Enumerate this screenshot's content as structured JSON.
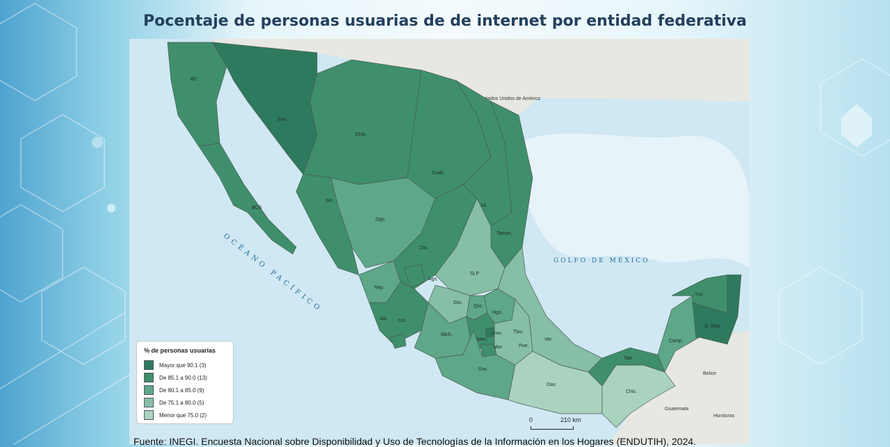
{
  "title": "Pocentaje de personas usuarias de de internet por entidad federativa",
  "colors": {
    "mayor": "#2e7a5e",
    "c85": "#3f8f6c",
    "c80": "#5ea789",
    "c75": "#86bfa6",
    "menor": "#a9d3bf",
    "foreign": "#e8e8e2",
    "sea": "#cfe8f3"
  },
  "map": {
    "usa_label": "Estados Unidos de América",
    "gulf_label": "GOLFO DE MÉXICO",
    "ocean_label": "OCÉANO PACÍFICO",
    "belize_label": "Belice",
    "guatemala_label": "Guatemala",
    "honduras_label": "Honduras",
    "states": {
      "bc": "BC",
      "son": "Son.",
      "chih": "Chih.",
      "coah": "Coah.",
      "nl": "NL",
      "tamps": "Tamps.",
      "sin": "Sin.",
      "bcs": "BCS",
      "dgo": "Dgo.",
      "zac": "Zac.",
      "slp": "SLP",
      "ags": "Ags.",
      "nay": "Nay.",
      "gto": "Gto.",
      "qro": "Qro.",
      "hgo": "Hgo.",
      "jal": "Jal.",
      "col": "Col.",
      "mich": "Mich.",
      "mex": "Mex.",
      "cdmx": "CDMX",
      "tlax": "Tlax.",
      "mor": "Mor.",
      "pue": "Pue.",
      "ver": "Ver.",
      "gro": "Gro.",
      "oax": "Oax.",
      "chis": "Chis.",
      "tab": "Tab.",
      "camp": "Camp.",
      "yuc": "Yuc.",
      "qroo": "Q. Roo"
    }
  },
  "legend": {
    "title": "% de personas usuarias",
    "items": [
      {
        "label": "Mayor que 90.1 (3)",
        "color": "#2e7a5e"
      },
      {
        "label": "De 85.1 a 90.0 (13)",
        "color": "#3f8f6c"
      },
      {
        "label": "De 80.1 a 85.0 (9)",
        "color": "#5ea789"
      },
      {
        "label": "De 75.1 a 80.0 (5)",
        "color": "#86bfa6"
      },
      {
        "label": "Menor que 75.0 (2)",
        "color": "#a9d3bf"
      }
    ]
  },
  "scale": {
    "zero": "0",
    "km": "210 km"
  },
  "source": "Fuente: INEGI. Encuesta Nacional sobre Disponibilidad y Uso de Tecnologías de la Información en los Hogares (ENDUTIH), 2024."
}
